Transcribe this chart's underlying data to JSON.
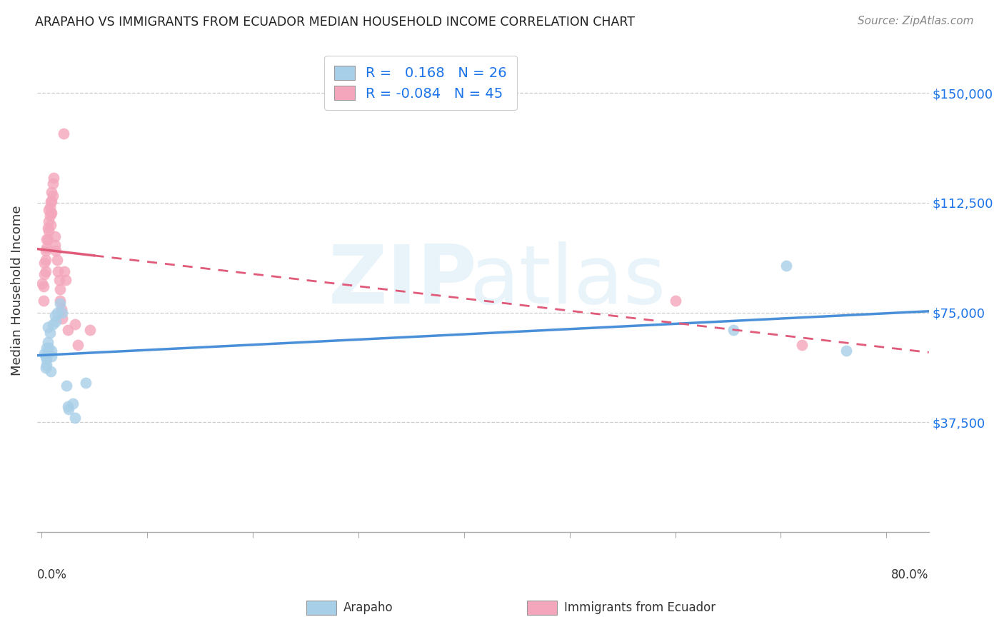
{
  "title": "ARAPAHO VS IMMIGRANTS FROM ECUADOR MEDIAN HOUSEHOLD INCOME CORRELATION CHART",
  "source": "Source: ZipAtlas.com",
  "ylabel": "Median Household Income",
  "ytick_labels": [
    "$37,500",
    "$75,000",
    "$112,500",
    "$150,000"
  ],
  "ytick_values": [
    37500,
    75000,
    112500,
    150000
  ],
  "ymin": 0,
  "ymax": 165000,
  "xmin": -0.004,
  "xmax": 0.84,
  "blue_color": "#a8cfe8",
  "pink_color": "#f4a7bc",
  "blue_line_color": "#4a90d9",
  "pink_line_color": "#e05a7a",
  "arapaho_x": [
    0.003,
    0.004,
    0.004,
    0.005,
    0.005,
    0.005,
    0.006,
    0.006,
    0.007,
    0.008,
    0.009,
    0.01,
    0.01,
    0.011,
    0.013,
    0.014,
    0.015,
    0.018,
    0.02,
    0.024,
    0.025,
    0.026,
    0.03,
    0.032,
    0.042,
    0.655,
    0.705,
    0.762
  ],
  "arapaho_y": [
    61000,
    60000,
    56000,
    63000,
    59000,
    57000,
    70000,
    65000,
    63000,
    68000,
    55000,
    62000,
    60000,
    71000,
    74000,
    72000,
    75000,
    78000,
    75000,
    50000,
    43000,
    42000,
    44000,
    39000,
    51000,
    69000,
    91000,
    62000
  ],
  "ecuador_x": [
    0.001,
    0.002,
    0.002,
    0.003,
    0.003,
    0.004,
    0.004,
    0.004,
    0.005,
    0.005,
    0.006,
    0.006,
    0.007,
    0.007,
    0.007,
    0.008,
    0.008,
    0.009,
    0.009,
    0.009,
    0.01,
    0.01,
    0.01,
    0.011,
    0.011,
    0.012,
    0.013,
    0.013,
    0.014,
    0.015,
    0.016,
    0.017,
    0.018,
    0.018,
    0.019,
    0.02,
    0.021,
    0.022,
    0.023,
    0.025,
    0.032,
    0.035,
    0.046,
    0.6,
    0.72
  ],
  "ecuador_y": [
    85000,
    84000,
    79000,
    92000,
    88000,
    96000,
    93000,
    89000,
    100000,
    97000,
    104000,
    100000,
    110000,
    106000,
    103000,
    111000,
    108000,
    113000,
    109000,
    105000,
    116000,
    113000,
    109000,
    119000,
    115000,
    121000,
    101000,
    98000,
    96000,
    93000,
    89000,
    86000,
    83000,
    79000,
    76000,
    73000,
    136000,
    89000,
    86000,
    69000,
    71000,
    64000,
    69000,
    79000,
    64000
  ]
}
